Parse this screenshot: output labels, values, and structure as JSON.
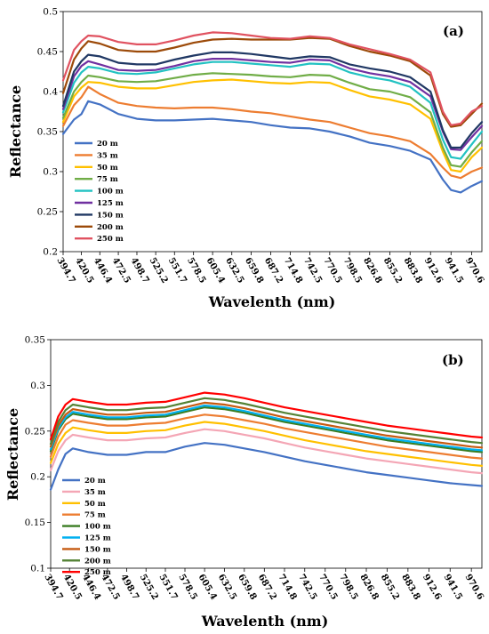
{
  "chart_data": [
    {
      "type": "line",
      "panel_label": "(a)",
      "xlabel": "Wavelenth (nm)",
      "ylabel": "Reflectance",
      "ylim": [
        0.2,
        0.5
      ],
      "yticks": [
        "0.2",
        "0.25",
        "0.3",
        "0.35",
        "0.4",
        "0.45",
        "0.5"
      ],
      "xticks": [
        "394.7",
        "420.5",
        "446.4",
        "472.5",
        "498.7",
        "525.2",
        "551.7",
        "578.5",
        "605.4",
        "632.5",
        "659.8",
        "687.2",
        "714.8",
        "742.5",
        "770.5",
        "798.5",
        "826.8",
        "855.2",
        "883.8",
        "912.6",
        "941.5",
        "970.6"
      ],
      "xlim": [
        394.7,
        985
      ],
      "grid": false,
      "legend_position": "lower-left",
      "x": [
        394.7,
        410,
        420.5,
        430,
        446.4,
        472.5,
        498.7,
        525.2,
        551.7,
        578.5,
        605.4,
        632.5,
        659.8,
        687.2,
        714.8,
        742.5,
        770.5,
        798.5,
        826.8,
        855.2,
        883.8,
        912.6,
        930,
        941.5,
        955,
        970.6,
        985
      ],
      "series": [
        {
          "name": "20 m",
          "color": "#4472c4",
          "values": [
            0.347,
            0.365,
            0.372,
            0.388,
            0.384,
            0.372,
            0.366,
            0.364,
            0.364,
            0.365,
            0.366,
            0.364,
            0.362,
            0.358,
            0.355,
            0.354,
            0.35,
            0.344,
            0.336,
            0.332,
            0.326,
            0.315,
            0.29,
            0.277,
            0.274,
            0.282,
            0.288
          ]
        },
        {
          "name": "35 m",
          "color": "#ed7d31",
          "values": [
            0.357,
            0.383,
            0.393,
            0.406,
            0.397,
            0.386,
            0.382,
            0.38,
            0.379,
            0.38,
            0.38,
            0.378,
            0.375,
            0.373,
            0.369,
            0.365,
            0.362,
            0.355,
            0.348,
            0.344,
            0.338,
            0.322,
            0.305,
            0.295,
            0.292,
            0.3,
            0.305
          ]
        },
        {
          "name": "50 m",
          "color": "#ffc000",
          "values": [
            0.362,
            0.394,
            0.405,
            0.412,
            0.411,
            0.406,
            0.404,
            0.404,
            0.408,
            0.412,
            0.414,
            0.415,
            0.413,
            0.411,
            0.41,
            0.412,
            0.411,
            0.402,
            0.394,
            0.39,
            0.384,
            0.366,
            0.325,
            0.302,
            0.3,
            0.318,
            0.33
          ]
        },
        {
          "name": "75 m",
          "color": "#70ad47",
          "values": [
            0.367,
            0.4,
            0.412,
            0.42,
            0.418,
            0.413,
            0.412,
            0.413,
            0.417,
            0.421,
            0.423,
            0.422,
            0.421,
            0.419,
            0.418,
            0.421,
            0.42,
            0.411,
            0.403,
            0.4,
            0.393,
            0.374,
            0.33,
            0.308,
            0.306,
            0.324,
            0.338
          ]
        },
        {
          "name": "100 m",
          "color": "#22c2c2",
          "values": [
            0.374,
            0.411,
            0.424,
            0.431,
            0.429,
            0.423,
            0.422,
            0.424,
            0.429,
            0.434,
            0.437,
            0.437,
            0.435,
            0.433,
            0.431,
            0.435,
            0.434,
            0.424,
            0.418,
            0.414,
            0.406,
            0.386,
            0.34,
            0.318,
            0.316,
            0.334,
            0.35
          ]
        },
        {
          "name": "125 m",
          "color": "#7030a0",
          "values": [
            0.378,
            0.419,
            0.432,
            0.438,
            0.434,
            0.427,
            0.426,
            0.427,
            0.432,
            0.438,
            0.441,
            0.441,
            0.439,
            0.437,
            0.436,
            0.44,
            0.439,
            0.429,
            0.423,
            0.419,
            0.412,
            0.394,
            0.35,
            0.328,
            0.327,
            0.343,
            0.357
          ]
        },
        {
          "name": "150 m",
          "color": "#203864",
          "values": [
            0.382,
            0.425,
            0.438,
            0.446,
            0.444,
            0.436,
            0.434,
            0.434,
            0.44,
            0.445,
            0.449,
            0.449,
            0.447,
            0.444,
            0.441,
            0.444,
            0.443,
            0.434,
            0.429,
            0.425,
            0.418,
            0.4,
            0.352,
            0.33,
            0.33,
            0.348,
            0.362
          ]
        },
        {
          "name": "200 m",
          "color": "#9c4a09",
          "values": [
            0.398,
            0.44,
            0.454,
            0.463,
            0.46,
            0.452,
            0.45,
            0.45,
            0.455,
            0.461,
            0.465,
            0.466,
            0.465,
            0.465,
            0.465,
            0.467,
            0.466,
            0.457,
            0.45,
            0.445,
            0.438,
            0.42,
            0.372,
            0.356,
            0.358,
            0.372,
            0.385
          ]
        },
        {
          "name": "250 m",
          "color": "#e05260",
          "values": [
            0.414,
            0.452,
            0.463,
            0.47,
            0.469,
            0.462,
            0.459,
            0.459,
            0.464,
            0.47,
            0.474,
            0.473,
            0.47,
            0.467,
            0.466,
            0.469,
            0.467,
            0.459,
            0.453,
            0.447,
            0.44,
            0.424,
            0.375,
            0.358,
            0.36,
            0.375,
            0.382
          ]
        }
      ]
    },
    {
      "type": "line",
      "panel_label": "(b)",
      "xlabel": "Wavelenth (nm)",
      "ylabel": "Reflectance",
      "ylim": [
        0.1,
        0.35
      ],
      "yticks": [
        "0.1",
        "0.15",
        "0.2",
        "0.25",
        "0.3",
        "0.35"
      ],
      "xticks": [
        "394.7",
        "420.5",
        "446.4",
        "472.5",
        "498.7",
        "525.2",
        "551.7",
        "578.5",
        "605.4",
        "632.5",
        "659.8",
        "687.2",
        "714.8",
        "742.5",
        "770.5",
        "798.5",
        "826.8",
        "855.2",
        "883.8",
        "912.6",
        "941.5",
        "970.6"
      ],
      "xlim": [
        394.7,
        985
      ],
      "grid": false,
      "legend_position": "lower-left",
      "x": [
        394.7,
        405,
        415,
        425,
        446.4,
        472.5,
        498.7,
        525.2,
        551.7,
        578.5,
        605.4,
        632.5,
        659.8,
        687.2,
        714.8,
        742.5,
        770.5,
        798.5,
        826.8,
        855.2,
        883.8,
        912.6,
        941.5,
        970.6,
        985
      ],
      "series": [
        {
          "name": "20 m",
          "color": "#4472c4",
          "values": [
            0.186,
            0.208,
            0.225,
            0.231,
            0.227,
            0.224,
            0.224,
            0.227,
            0.227,
            0.233,
            0.237,
            0.235,
            0.231,
            0.227,
            0.222,
            0.217,
            0.213,
            0.209,
            0.205,
            0.202,
            0.199,
            0.196,
            0.193,
            0.191,
            0.19
          ]
        },
        {
          "name": "35 m",
          "color": "#f4a6b5",
          "values": [
            0.207,
            0.228,
            0.24,
            0.246,
            0.243,
            0.24,
            0.24,
            0.242,
            0.243,
            0.248,
            0.252,
            0.25,
            0.246,
            0.242,
            0.237,
            0.232,
            0.228,
            0.224,
            0.22,
            0.217,
            0.214,
            0.211,
            0.208,
            0.205,
            0.204
          ]
        },
        {
          "name": "50 m",
          "color": "#ffc000",
          "values": [
            0.215,
            0.236,
            0.248,
            0.254,
            0.251,
            0.248,
            0.248,
            0.25,
            0.251,
            0.256,
            0.26,
            0.258,
            0.254,
            0.25,
            0.245,
            0.24,
            0.236,
            0.232,
            0.228,
            0.225,
            0.222,
            0.219,
            0.216,
            0.213,
            0.212
          ]
        },
        {
          "name": "75 m",
          "color": "#ed7d31",
          "values": [
            0.222,
            0.244,
            0.257,
            0.262,
            0.259,
            0.256,
            0.256,
            0.258,
            0.259,
            0.264,
            0.268,
            0.266,
            0.262,
            0.258,
            0.253,
            0.249,
            0.245,
            0.241,
            0.237,
            0.233,
            0.23,
            0.227,
            0.224,
            0.221,
            0.22
          ]
        },
        {
          "name": "100 m",
          "color": "#3a7d22",
          "values": [
            0.228,
            0.251,
            0.263,
            0.269,
            0.266,
            0.263,
            0.263,
            0.265,
            0.266,
            0.271,
            0.276,
            0.274,
            0.27,
            0.265,
            0.26,
            0.256,
            0.252,
            0.248,
            0.244,
            0.24,
            0.237,
            0.234,
            0.231,
            0.228,
            0.227
          ]
        },
        {
          "name": "125 m",
          "color": "#00b0f0",
          "values": [
            0.23,
            0.253,
            0.265,
            0.271,
            0.268,
            0.265,
            0.265,
            0.267,
            0.268,
            0.273,
            0.278,
            0.276,
            0.272,
            0.267,
            0.262,
            0.258,
            0.254,
            0.25,
            0.246,
            0.242,
            0.239,
            0.236,
            0.233,
            0.23,
            0.229
          ]
        },
        {
          "name": "150 m",
          "color": "#c55a11",
          "values": [
            0.233,
            0.256,
            0.268,
            0.274,
            0.271,
            0.268,
            0.268,
            0.27,
            0.271,
            0.276,
            0.281,
            0.279,
            0.275,
            0.27,
            0.265,
            0.261,
            0.257,
            0.253,
            0.249,
            0.245,
            0.242,
            0.239,
            0.236,
            0.233,
            0.232
          ]
        },
        {
          "name": "200 m",
          "color": "#548235",
          "values": [
            0.236,
            0.26,
            0.273,
            0.279,
            0.276,
            0.273,
            0.273,
            0.275,
            0.276,
            0.281,
            0.286,
            0.284,
            0.28,
            0.275,
            0.27,
            0.266,
            0.262,
            0.258,
            0.254,
            0.25,
            0.247,
            0.244,
            0.241,
            0.238,
            0.237
          ]
        },
        {
          "name": "250 m",
          "color": "#ff0000",
          "values": [
            0.241,
            0.266,
            0.279,
            0.285,
            0.282,
            0.279,
            0.279,
            0.281,
            0.282,
            0.287,
            0.292,
            0.29,
            0.286,
            0.281,
            0.276,
            0.272,
            0.268,
            0.264,
            0.26,
            0.256,
            0.253,
            0.25,
            0.247,
            0.244,
            0.243
          ]
        }
      ]
    }
  ]
}
